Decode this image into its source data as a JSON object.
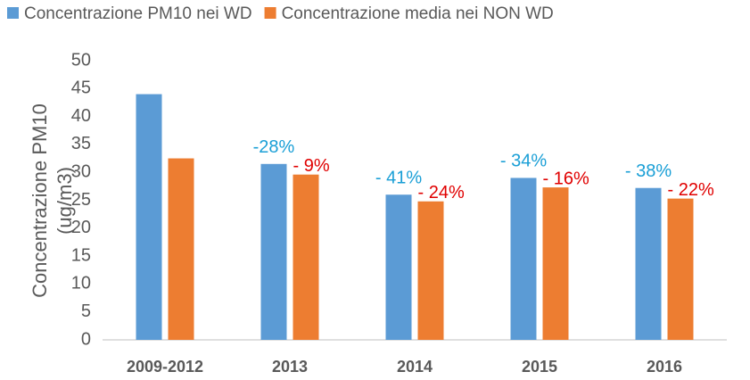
{
  "chart_data": {
    "type": "bar",
    "categories": [
      "2009-2012",
      "2013",
      "2014",
      "2015",
      "2016"
    ],
    "series": [
      {
        "name": "Concentrazione PM10 nei WD",
        "color": "#5b9bd5",
        "values": [
          44,
          31.5,
          26,
          29,
          27.2
        ],
        "annotations": [
          null,
          "-28%",
          "- 41%",
          "- 34%",
          "- 38%"
        ],
        "annotation_color": "#1a9fd6"
      },
      {
        "name": "Concentrazione media nei NON WD",
        "color": "#ed7d31",
        "values": [
          32.5,
          29.6,
          24.8,
          27.3,
          25.3
        ],
        "annotations": [
          null,
          "- 9%",
          "- 24%",
          "- 16%",
          "- 22%"
        ],
        "annotation_color": "#e00000"
      }
    ],
    "y_label": [
      "Concentrazione PM10",
      "(ug/m3)"
    ],
    "ylim": [
      0,
      50
    ],
    "yticks": [
      0,
      5,
      10,
      15,
      20,
      25,
      30,
      35,
      40,
      45,
      50
    ],
    "grid": false
  }
}
